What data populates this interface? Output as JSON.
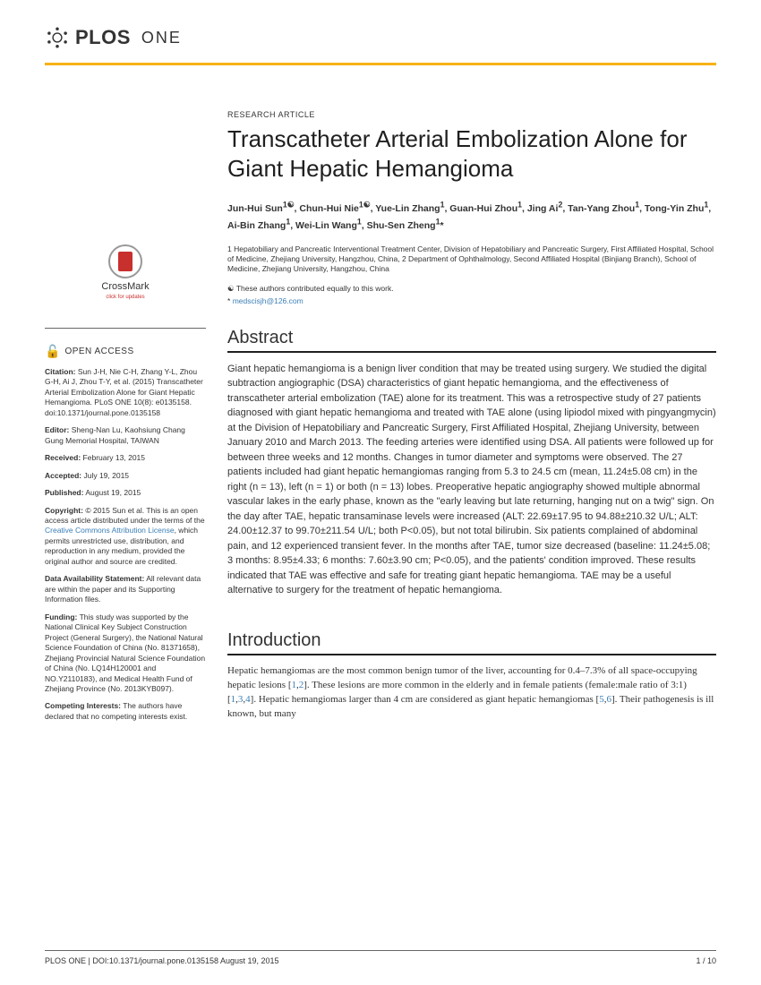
{
  "header": {
    "logo_bold": "PLOS",
    "logo_light": "ONE"
  },
  "article_type": "RESEARCH ARTICLE",
  "title": "Transcatheter Arterial Embolization Alone for Giant Hepatic Hemangioma",
  "authors_html": "Jun-Hui Sun<sup>1☯</sup>, Chun-Hui Nie<sup>1☯</sup>, Yue-Lin Zhang<sup>1</sup>, Guan-Hui Zhou<sup>1</sup>, Jing Ai<sup>2</sup>, Tan-Yang Zhou<sup>1</sup>, Tong-Yin Zhu<sup>1</sup>, Ai-Bin Zhang<sup>1</sup>, Wei-Lin Wang<sup>1</sup>, Shu-Sen Zheng<sup>1</sup>*",
  "affiliations": "1 Hepatobiliary and Pancreatic Interventional Treatment Center, Division of Hepatobiliary and Pancreatic Surgery, First Affiliated Hospital, School of Medicine, Zhejiang University, Hangzhou, China, 2 Department of Ophthalmology, Second Affiliated Hospital (Binjiang Branch), School of Medicine, Zhejiang University, Hangzhou, China",
  "equal_note": "☯ These authors contributed equally to this work.",
  "corr_mark": "*",
  "corr_email": "medscisjh@126.com",
  "abstract_heading": "Abstract",
  "abstract_body": "Giant hepatic hemangioma is a benign liver condition that may be treated using surgery. We studied the digital subtraction angiographic (DSA) characteristics of giant hepatic hemangioma, and the effectiveness of transcatheter arterial embolization (TAE) alone for its treatment. This was a retrospective study of 27 patients diagnosed with giant hepatic hemangioma and treated with TAE alone (using lipiodol mixed with pingyangmycin) at the Division of Hepatobiliary and Pancreatic Surgery, First Affiliated Hospital, Zhejiang University, between January 2010 and March 2013. The feeding arteries were identified using DSA. All patients were followed up for between three weeks and 12 months. Changes in tumor diameter and symptoms were observed. The 27 patients included had giant hepatic hemangiomas ranging from 5.3 to 24.5 cm (mean, 11.24±5.08 cm) in the right (n = 13), left (n = 1) or both (n = 13) lobes. Preoperative hepatic angiography showed multiple abnormal vascular lakes in the early phase, known as the \"early leaving but late returning, hanging nut on a twig\" sign. On the day after TAE, hepatic transaminase levels were increased (ALT: 22.69±17.95 to 94.88±210.32 U/L; ALT: 24.00±12.37 to 99.70±211.54 U/L; both P<0.05), but not total bilirubin. Six patients complained of abdominal pain, and 12 experienced transient fever. In the months after TAE, tumor size decreased (baseline: 11.24±5.08; 3 months: 8.95±4.33; 6 months: 7.60±3.90 cm; P<0.05), and the patients' condition improved. These results indicated that TAE was effective and safe for treating giant hepatic hemangioma. TAE may be a useful alternative to surgery for the treatment of hepatic hemangioma.",
  "intro_heading": "Introduction",
  "intro_body": "Hepatic hemangiomas are the most common benign tumor of the liver, accounting for 0.4–7.3% of all space-occupying hepatic lesions [<a>1</a>,<a>2</a>]. These lesions are more common in the elderly and in female patients (female:male ratio of 3:1) [<a>1</a>,<a>3</a>,<a>4</a>]. Hepatic hemangiomas larger than 4 cm are considered as giant hepatic hemangiomas [<a>5</a>,<a>6</a>]. Their pathogenesis is ill known, but many",
  "sidebar": {
    "crossmark_label": "CrossMark",
    "crossmark_sub": "click for updates",
    "open_access_label": "OPEN ACCESS",
    "citation_label": "Citation:",
    "citation": "Sun J-H, Nie C-H, Zhang Y-L, Zhou G-H, Ai J, Zhou T-Y, et al. (2015) Transcatheter Arterial Embolization Alone for Giant Hepatic Hemangioma. PLoS ONE 10(8): e0135158. doi:10.1371/journal.pone.0135158",
    "editor_label": "Editor:",
    "editor": "Sheng-Nan Lu, Kaohsiung Chang Gung Memorial Hospital, TAIWAN",
    "received_label": "Received:",
    "received": "February 13, 2015",
    "accepted_label": "Accepted:",
    "accepted": "July 19, 2015",
    "published_label": "Published:",
    "published": "August 19, 2015",
    "copyright_label": "Copyright:",
    "copyright_pre": "© 2015 Sun et al. This is an open access article distributed under the terms of the ",
    "cc_link": "Creative Commons Attribution License",
    "copyright_post": ", which permits unrestricted use, distribution, and reproduction in any medium, provided the original author and source are credited.",
    "data_label": "Data Availability Statement:",
    "data": "All relevant data are within the paper and its Supporting Information files.",
    "funding_label": "Funding:",
    "funding": "This study was supported by the National Clinical Key Subject Construction Project (General Surgery), the National Natural Science Foundation of China (No. 81371658), Zhejiang Provincial Natural Science Foundation of China (No. LQ14H120001 and NO.Y2110183), and Medical Health Fund of Zhejiang Province (No. 2013KYB097).",
    "competing_label": "Competing Interests:",
    "competing": "The authors have declared that no competing interests exist."
  },
  "footer": {
    "left": "PLOS ONE | DOI:10.1371/journal.pone.0135158   August 19, 2015",
    "right": "1 / 10"
  },
  "colors": {
    "accent": "#f7b217",
    "link": "#3b7fb6",
    "text": "#333333"
  }
}
